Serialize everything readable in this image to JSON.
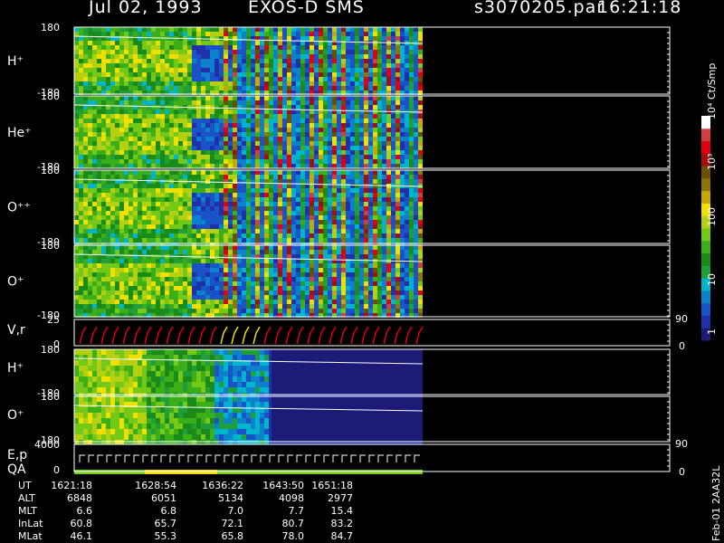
{
  "header": {
    "date": "Jul 02, 1993",
    "instrument": "EXOS-D SMS",
    "file": "s3070205.par",
    "time": "16:21:18"
  },
  "colorbar": {
    "unit": "Ct/Smp",
    "tick_labels": [
      "1",
      "10",
      "100",
      "10³",
      "10⁴"
    ],
    "colors": [
      "#1c1c78",
      "#1f31a8",
      "#1a52c8",
      "#0c82cc",
      "#00b4cc",
      "#1f9f3a",
      "#1a8a18",
      "#3cae18",
      "#74c818",
      "#b4d010",
      "#f0e000",
      "#c8a800",
      "#8c7800",
      "#6c5000",
      "#a01010",
      "#e00010",
      "#d04040",
      "#ffffff"
    ]
  },
  "side_label": "Feb-01  2AA32L",
  "panels": [
    {
      "label": "H⁺",
      "ytop": "180",
      "ybot": "-180"
    },
    {
      "label": "He⁺",
      "ytop": "180",
      "ybot": "-180"
    },
    {
      "label": "O⁺⁺",
      "ytop": "180",
      "ybot": "-180"
    },
    {
      "label": "O⁺",
      "ytop": "180",
      "ybot": "-180"
    },
    {
      "label": "V,r",
      "ytop": "25",
      "ybot": "0",
      "rtop": "90",
      "rbot": "0"
    },
    {
      "label": "H⁺",
      "ytop": "180",
      "ybot": "-180"
    },
    {
      "label": "O⁺",
      "ytop": "180",
      "ybot": "-180"
    },
    {
      "label": "E,p",
      "label2": "QA",
      "ytop": "4000",
      "ybot": "0",
      "rtop": "90",
      "rbot": "0"
    }
  ],
  "orbit_table": {
    "rows": [
      {
        "name": "UT",
        "values": [
          "1621:18",
          "1628:54",
          "1636:22",
          "1643:50",
          "1651:18"
        ]
      },
      {
        "name": "ALT",
        "values": [
          "6848",
          "6051",
          "5134",
          "4098",
          "2977"
        ]
      },
      {
        "name": "MLT",
        "values": [
          "6.6",
          "6.8",
          "7.0",
          "7.7",
          "15.4"
        ]
      },
      {
        "name": "InLat",
        "values": [
          "60.8",
          "65.7",
          "72.1",
          "80.7",
          "83.2"
        ]
      },
      {
        "name": "MLat",
        "values": [
          "46.1",
          "55.3",
          "65.8",
          "78.0",
          "84.7"
        ]
      }
    ]
  },
  "chart_data": {
    "type": "heatmap",
    "title": "Jul 02, 1993   EXOS-D SMS",
    "x": [
      "1621:18",
      "1628:54",
      "1636:22",
      "1643:50",
      "1651:18"
    ],
    "ylim": [
      -180,
      180
    ],
    "colorbar_range": [
      1,
      10000
    ],
    "colorbar_scale": "log",
    "series": [
      {
        "name": "H⁺",
        "ylim": [
          -180,
          180
        ]
      },
      {
        "name": "He⁺",
        "ylim": [
          -180,
          180
        ]
      },
      {
        "name": "O⁺⁺",
        "ylim": [
          -180,
          180
        ]
      },
      {
        "name": "O⁺",
        "ylim": [
          -180,
          180
        ]
      },
      {
        "name": "V,r",
        "ylim": [
          0,
          25
        ]
      },
      {
        "name": "H⁺",
        "ylim": [
          -180,
          180
        ]
      },
      {
        "name": "O⁺",
        "ylim": [
          -180,
          180
        ]
      },
      {
        "name": "E,p",
        "ylim": [
          0,
          4000
        ]
      }
    ]
  }
}
